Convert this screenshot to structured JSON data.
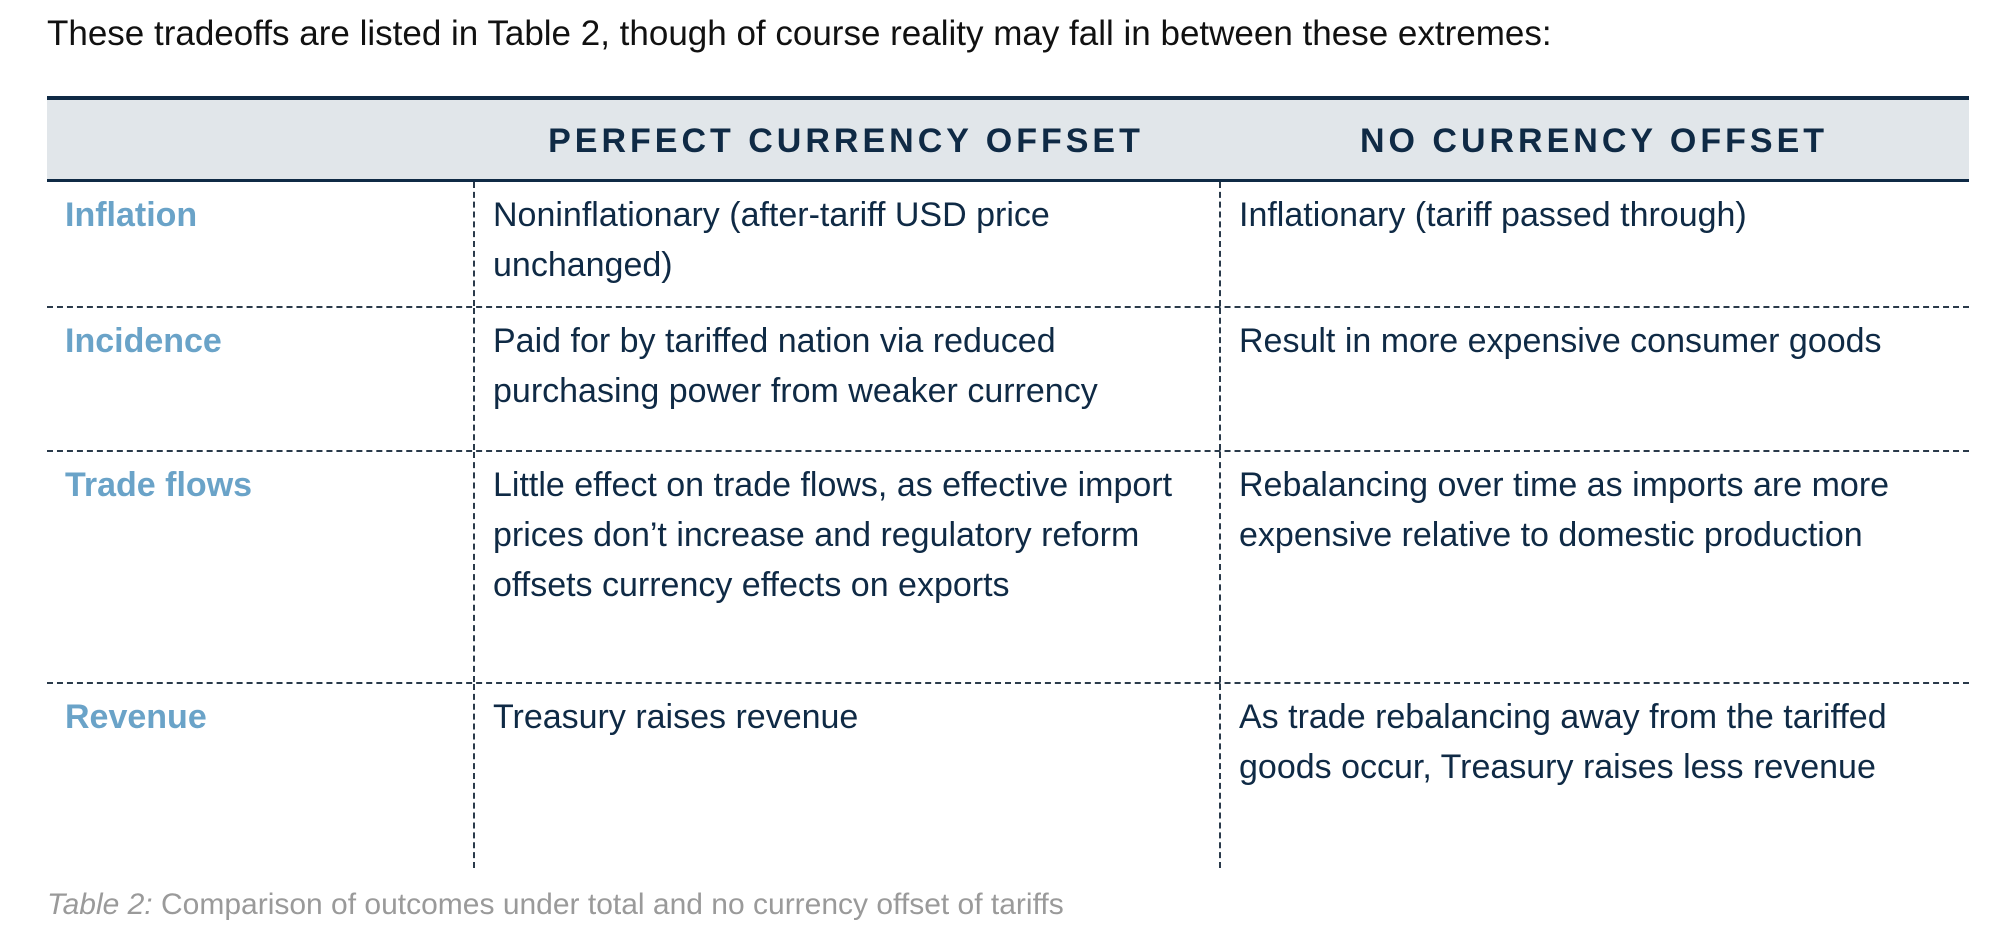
{
  "intro": "These tradeoffs are listed in Table 2, though of course reality may fall in between these extremes:",
  "table": {
    "headers": [
      "",
      "PERFECT CURRENCY OFFSET",
      "NO CURRENCY OFFSET"
    ],
    "rows": [
      {
        "label": "Inflation",
        "perfect": "Noninflationary (after-tariff USD price unchanged)",
        "none": "Inflationary (tariff passed through)"
      },
      {
        "label": "Incidence",
        "perfect": "Paid for by tariffed nation via reduced purchasing power from weaker currency",
        "none": "Result in more expensive consumer goods"
      },
      {
        "label": "Trade flows",
        "perfect": "Little effect on trade flows, as effective import prices don’t increase and regulatory reform offsets currency effects on exports",
        "none": "Rebalancing over time as imports are more expensive relative to domestic production"
      },
      {
        "label": "Revenue",
        "perfect": "Treasury raises revenue",
        "none": "As trade rebalancing away from the tariffed goods occur, Treasury raises less revenue"
      }
    ]
  },
  "caption": {
    "label": "Table 2:",
    "text": " Comparison of outcomes under total and no currency offset of tariffs"
  },
  "colors": {
    "heading_text": "#0f2a45",
    "row_label": "#6aa3c8",
    "header_bg": "#e1e6ea",
    "caption": "#9a9a9a"
  }
}
